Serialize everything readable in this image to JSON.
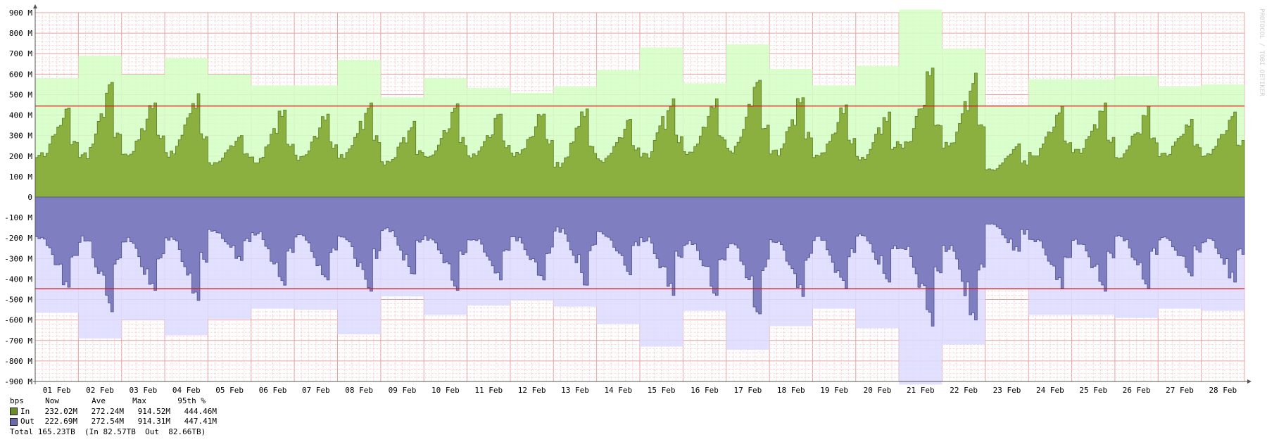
{
  "watermark": "PROTOCOL / TOBI OETIKER",
  "chart_data": {
    "type": "area",
    "xlim_days": [
      1,
      29
    ],
    "ylim": [
      -900000000,
      900000000
    ],
    "yticks": [
      {
        "v": 900000000,
        "label": "900 M"
      },
      {
        "v": 800000000,
        "label": "800 M"
      },
      {
        "v": 700000000,
        "label": "700 M"
      },
      {
        "v": 600000000,
        "label": "600 M"
      },
      {
        "v": 500000000,
        "label": "500 M"
      },
      {
        "v": 400000000,
        "label": "400 M"
      },
      {
        "v": 300000000,
        "label": "300 M"
      },
      {
        "v": 200000000,
        "label": "200 M"
      },
      {
        "v": 100000000,
        "label": "100 M"
      },
      {
        "v": 0,
        "label": "0"
      },
      {
        "v": -100000000,
        "label": "-100 M"
      },
      {
        "v": -200000000,
        "label": "-200 M"
      },
      {
        "v": -300000000,
        "label": "-300 M"
      },
      {
        "v": -400000000,
        "label": "-400 M"
      },
      {
        "v": -500000000,
        "label": "-500 M"
      },
      {
        "v": -600000000,
        "label": "-600 M"
      },
      {
        "v": -700000000,
        "label": "-700 M"
      },
      {
        "v": -800000000,
        "label": "-800 M"
      },
      {
        "v": -900000000,
        "label": "-900 M"
      }
    ],
    "xticks": [
      "01 Feb",
      "02 Feb",
      "03 Feb",
      "04 Feb",
      "05 Feb",
      "06 Feb",
      "07 Feb",
      "08 Feb",
      "09 Feb",
      "10 Feb",
      "11 Feb",
      "12 Feb",
      "13 Feb",
      "14 Feb",
      "15 Feb",
      "16 Feb",
      "17 Feb",
      "18 Feb",
      "19 Feb",
      "20 Feb",
      "21 Feb",
      "22 Feb",
      "23 Feb",
      "24 Feb",
      "25 Feb",
      "26 Feb",
      "27 Feb",
      "28 Feb"
    ],
    "series": [
      {
        "name": "In",
        "color": "#8cb040",
        "line": "#5a7a24",
        "max_color": "#d4ffc4",
        "daily_max": [
          580,
          690,
          598,
          678,
          598,
          545,
          545,
          670,
          487,
          580,
          533,
          508,
          540,
          620,
          730,
          555,
          745,
          625,
          545,
          640,
          915,
          725,
          445,
          575,
          575,
          590,
          540,
          550
        ],
        "daily_min": [
          150,
          120,
          150,
          140,
          130,
          120,
          140,
          140,
          110,
          140,
          150,
          160,
          90,
          130,
          140,
          160,
          150,
          150,
          140,
          130,
          160,
          160,
          100,
          150,
          160,
          140,
          160,
          160
        ],
        "daily_peak": [
          435,
          560,
          460,
          505,
          300,
          425,
          405,
          460,
          370,
          455,
          405,
          405,
          430,
          380,
          480,
          480,
          570,
          485,
          450,
          415,
          630,
          605,
          260,
          445,
          460,
          445,
          380,
          415
        ],
        "pct95": 444460000
      },
      {
        "name": "Out",
        "color": "#7e7ec0",
        "line": "#4e4e8a",
        "max_color": "#dcdcff",
        "daily_max": [
          -565,
          -690,
          -600,
          -675,
          -595,
          -545,
          -550,
          -670,
          -485,
          -575,
          -530,
          -505,
          -535,
          -620,
          -730,
          -555,
          -745,
          -630,
          -545,
          -640,
          -915,
          -720,
          -445,
          -575,
          -575,
          -590,
          -545,
          -555
        ],
        "daily_min": [
          -150,
          -115,
          -150,
          -140,
          -130,
          -120,
          -140,
          -140,
          -110,
          -140,
          -150,
          -155,
          -95,
          -130,
          -140,
          -160,
          -150,
          -150,
          -140,
          -130,
          -160,
          -160,
          -100,
          -150,
          -160,
          -140,
          -160,
          -160
        ],
        "daily_peak": [
          -440,
          -560,
          -455,
          -505,
          -310,
          -430,
          -405,
          -460,
          -375,
          -455,
          -405,
          -405,
          -430,
          -380,
          -480,
          -480,
          -570,
          -485,
          -445,
          -415,
          -630,
          -600,
          -265,
          -445,
          -460,
          -445,
          -385,
          -415
        ],
        "pct95": -447410000
      }
    ],
    "legend": {
      "header": [
        "bps",
        "Now",
        "Ave",
        "Max",
        "95th %"
      ],
      "rows": [
        {
          "name": "In",
          "now": "232.02M",
          "ave": "272.24M",
          "max": "914.52M",
          "p95": "444.46M"
        },
        {
          "name": "Out",
          "now": "222.69M",
          "ave": "272.54M",
          "max": "914.31M",
          "p95": "447.41M"
        }
      ],
      "total": {
        "label": "Total",
        "value": "165.23TB",
        "in_label": "(In",
        "in_value": "82.57TB",
        "out_label": "Out",
        "out_value": "82.66TB)"
      }
    }
  },
  "colors": {
    "grid_minor": "#f0d2d2",
    "grid_major": "#e8a0a0",
    "pct_line": "#d01010",
    "axis": "#555555"
  }
}
